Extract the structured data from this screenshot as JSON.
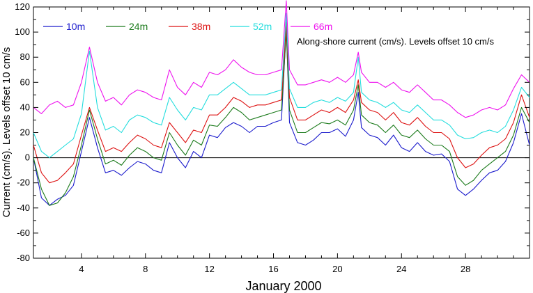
{
  "chart_data": {
    "type": "line",
    "title": "",
    "annotation": "Along-shore current (cm/s). Levels offset 10 cm/s",
    "xlabel": "January 2000",
    "ylabel": "Current (cm/s). Levels offset 10 cm/s",
    "xlim": [
      1,
      32
    ],
    "ylim": [
      -80,
      120
    ],
    "xticks": [
      4,
      8,
      12,
      16,
      20,
      24,
      28
    ],
    "yticks": [
      -80,
      -60,
      -40,
      -20,
      0,
      20,
      40,
      60,
      80,
      100,
      120
    ],
    "zero_line": true,
    "grid": false,
    "legend_position": "top-left",
    "series": [
      {
        "name": "10m",
        "color": "#1a1acc",
        "x": [
          1,
          1.5,
          2,
          2.5,
          3,
          3.5,
          4,
          4.5,
          5,
          5.5,
          6,
          6.5,
          7,
          7.5,
          8,
          8.5,
          9,
          9.5,
          10,
          10.5,
          11,
          11.5,
          12,
          12.5,
          13,
          13.5,
          14,
          14.5,
          15,
          15.5,
          16,
          16.5,
          16.8,
          17,
          17.5,
          18,
          18.5,
          19,
          19.5,
          20,
          20.5,
          21,
          21.3,
          21.5,
          22,
          22.5,
          23,
          23.5,
          24,
          24.5,
          25,
          25.5,
          26,
          26.5,
          27,
          27.5,
          28,
          28.5,
          29,
          29.5,
          30,
          30.5,
          31,
          31.5,
          32
        ],
        "values": [
          0,
          -32,
          -38,
          -33,
          -30,
          -22,
          5,
          32,
          8,
          -12,
          -10,
          -14,
          -8,
          -3,
          -5,
          -10,
          -12,
          12,
          0,
          -8,
          5,
          0,
          18,
          16,
          24,
          28,
          25,
          20,
          25,
          25,
          28,
          30,
          104,
          28,
          12,
          10,
          14,
          20,
          20,
          23,
          17,
          30,
          52,
          24,
          18,
          16,
          10,
          18,
          8,
          5,
          12,
          5,
          2,
          3,
          -3,
          -25,
          -30,
          -25,
          -18,
          -12,
          -10,
          -3,
          12,
          35,
          10
        ]
      },
      {
        "name": "24m",
        "color": "#1a7a1a",
        "x": [
          1,
          1.5,
          2,
          2.5,
          3,
          3.5,
          4,
          4.5,
          5,
          5.5,
          6,
          6.5,
          7,
          7.5,
          8,
          8.5,
          9,
          9.5,
          10,
          10.5,
          11,
          11.5,
          12,
          12.5,
          13,
          13.5,
          14,
          14.5,
          15,
          15.5,
          16,
          16.5,
          16.8,
          17,
          17.5,
          18,
          18.5,
          19,
          19.5,
          20,
          20.5,
          21,
          21.3,
          21.5,
          22,
          22.5,
          23,
          23.5,
          24,
          24.5,
          25,
          25.5,
          26,
          26.5,
          27,
          27.5,
          28,
          28.5,
          29,
          29.5,
          30,
          30.5,
          31,
          31.5,
          32
        ],
        "values": [
          0,
          -25,
          -38,
          -36,
          -28,
          -15,
          10,
          38,
          15,
          -5,
          -2,
          -6,
          2,
          8,
          5,
          0,
          -2,
          20,
          10,
          2,
          14,
          10,
          26,
          25,
          32,
          40,
          36,
          30,
          32,
          34,
          36,
          38,
          100,
          38,
          20,
          20,
          24,
          28,
          27,
          30,
          26,
          38,
          58,
          34,
          28,
          26,
          20,
          26,
          18,
          16,
          22,
          15,
          10,
          10,
          5,
          -15,
          -22,
          -18,
          -10,
          -5,
          0,
          5,
          18,
          40,
          28
        ]
      },
      {
        "name": "38m",
        "color": "#dd1111",
        "x": [
          1,
          1.5,
          2,
          2.5,
          3,
          3.5,
          4,
          4.5,
          5,
          5.5,
          6,
          6.5,
          7,
          7.5,
          8,
          8.5,
          9,
          9.5,
          10,
          10.5,
          11,
          11.5,
          12,
          12.5,
          13,
          13.5,
          14,
          14.5,
          15,
          15.5,
          16,
          16.5,
          16.8,
          17,
          17.5,
          18,
          18.5,
          19,
          19.5,
          20,
          20.5,
          21,
          21.3,
          21.5,
          22,
          22.5,
          23,
          23.5,
          24,
          24.5,
          25,
          25.5,
          26,
          26.5,
          27,
          27.5,
          28,
          28.5,
          29,
          29.5,
          30,
          30.5,
          31,
          31.5,
          32
        ],
        "values": [
          10,
          -12,
          -20,
          -18,
          -12,
          -5,
          18,
          40,
          22,
          5,
          8,
          5,
          12,
          18,
          15,
          10,
          8,
          28,
          20,
          12,
          22,
          20,
          34,
          34,
          40,
          48,
          45,
          40,
          42,
          42,
          44,
          46,
          108,
          48,
          30,
          30,
          34,
          38,
          36,
          40,
          36,
          46,
          62,
          44,
          38,
          36,
          30,
          36,
          28,
          26,
          32,
          25,
          20,
          20,
          15,
          0,
          -8,
          -5,
          2,
          8,
          10,
          15,
          28,
          50,
          32
        ]
      },
      {
        "name": "52m",
        "color": "#22dddd",
        "x": [
          1,
          1.5,
          2,
          2.5,
          3,
          3.5,
          4,
          4.5,
          5,
          5.5,
          6,
          6.5,
          7,
          7.5,
          8,
          8.5,
          9,
          9.5,
          10,
          10.5,
          11,
          11.5,
          12,
          12.5,
          13,
          13.5,
          14,
          14.5,
          15,
          15.5,
          16,
          16.5,
          16.8,
          17,
          17.5,
          18,
          18.5,
          19,
          19.5,
          20,
          20.5,
          21,
          21.3,
          21.5,
          22,
          22.5,
          23,
          23.5,
          24,
          24.5,
          25,
          25.5,
          26,
          26.5,
          27,
          27.5,
          28,
          28.5,
          29,
          29.5,
          30,
          30.5,
          31,
          31.5,
          32
        ],
        "values": [
          20,
          5,
          0,
          5,
          10,
          15,
          35,
          85,
          40,
          22,
          25,
          20,
          30,
          34,
          32,
          28,
          26,
          48,
          38,
          30,
          40,
          38,
          50,
          50,
          55,
          60,
          55,
          50,
          50,
          50,
          52,
          54,
          115,
          55,
          40,
          40,
          44,
          46,
          44,
          48,
          45,
          52,
          80,
          52,
          46,
          44,
          40,
          44,
          38,
          36,
          42,
          36,
          30,
          30,
          26,
          18,
          15,
          16,
          20,
          22,
          20,
          25,
          38,
          56,
          48
        ]
      },
      {
        "name": "66m",
        "color": "#ee11ee",
        "x": [
          1,
          1.5,
          2,
          2.5,
          3,
          3.5,
          4,
          4.5,
          5,
          5.5,
          6,
          6.5,
          7,
          7.5,
          8,
          8.5,
          9,
          9.5,
          10,
          10.5,
          11,
          11.5,
          12,
          12.5,
          13,
          13.5,
          14,
          14.5,
          15,
          15.5,
          16,
          16.5,
          16.8,
          17,
          17.5,
          18,
          18.5,
          19,
          19.5,
          20,
          20.5,
          21,
          21.3,
          21.5,
          22,
          22.5,
          23,
          23.5,
          24,
          24.5,
          25,
          25.5,
          26,
          26.5,
          27,
          27.5,
          28,
          28.5,
          29,
          29.5,
          30,
          30.5,
          31,
          31.5,
          32
        ],
        "values": [
          40,
          35,
          42,
          45,
          40,
          42,
          60,
          88,
          60,
          45,
          48,
          42,
          50,
          54,
          52,
          48,
          46,
          70,
          56,
          50,
          60,
          56,
          68,
          66,
          70,
          78,
          72,
          68,
          66,
          66,
          68,
          70,
          125,
          70,
          58,
          58,
          60,
          62,
          60,
          64,
          60,
          66,
          84,
          68,
          60,
          60,
          56,
          60,
          54,
          52,
          58,
          52,
          46,
          46,
          42,
          36,
          32,
          34,
          38,
          40,
          38,
          42,
          55,
          66,
          60
        ]
      }
    ]
  }
}
